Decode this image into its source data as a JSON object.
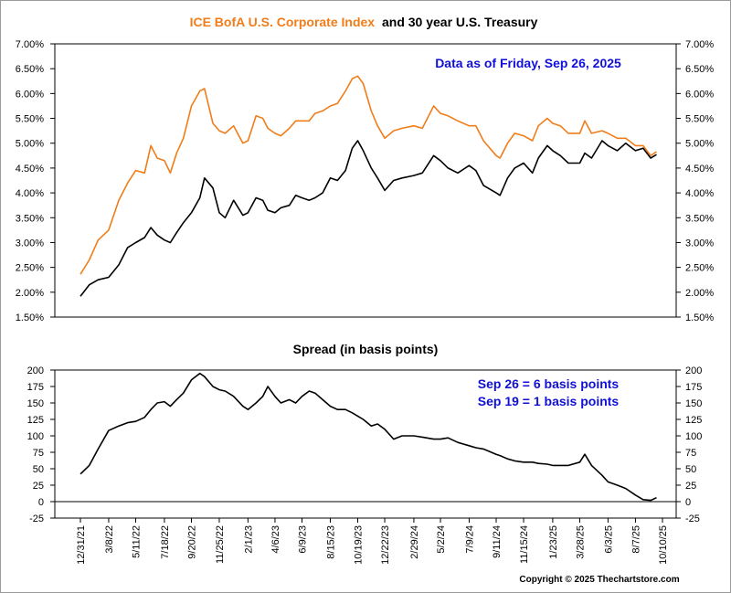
{
  "title": {
    "part1": "ICE BofA U.S. Corporate Index",
    "part2": "and 30 year U.S. Treasury"
  },
  "colors": {
    "corporate": "#f07d1a",
    "treasury": "#000000",
    "note": "#1010d8"
  },
  "annotations": {
    "top_note": "Data as of Friday, Sep 26, 2025",
    "spread_note_1": "Sep 26 = 6 basis points",
    "spread_note_2": "Sep 19 = 1 basis points"
  },
  "copyright": "Copyright © 2025 Thechartstore.com",
  "chart_data": [
    {
      "type": "line",
      "title": "ICE BofA U.S. Corporate Index and 30 year U.S. Treasury",
      "ylim": [
        1.5,
        7.0
      ],
      "y_ticks": [
        "1.50%",
        "2.00%",
        "2.50%",
        "3.00%",
        "3.50%",
        "4.00%",
        "4.50%",
        "5.00%",
        "5.50%",
        "6.00%",
        "6.50%",
        "7.00%"
      ],
      "grid": false,
      "series": [
        {
          "name": "ICE BofA U.S. Corporate Index",
          "color": "#f07d1a",
          "points": [
            [
              "12/31/21",
              2.36
            ],
            [
              "1/21/22",
              2.65
            ],
            [
              "2/11/22",
              3.05
            ],
            [
              "3/8/22",
              3.25
            ],
            [
              "4/1/22",
              3.85
            ],
            [
              "4/22/22",
              4.2
            ],
            [
              "5/11/22",
              4.45
            ],
            [
              "6/1/22",
              4.4
            ],
            [
              "6/16/22",
              4.95
            ],
            [
              "7/1/22",
              4.7
            ],
            [
              "7/18/22",
              4.65
            ],
            [
              "8/1/22",
              4.4
            ],
            [
              "8/16/22",
              4.8
            ],
            [
              "9/1/22",
              5.1
            ],
            [
              "9/20/22",
              5.75
            ],
            [
              "10/10/22",
              6.05
            ],
            [
              "10/21/22",
              6.1
            ],
            [
              "11/10/22",
              5.4
            ],
            [
              "11/25/22",
              5.25
            ],
            [
              "12/9/22",
              5.2
            ],
            [
              "12/29/22",
              5.35
            ],
            [
              "1/20/23",
              5.0
            ],
            [
              "2/1/23",
              5.05
            ],
            [
              "2/20/23",
              5.55
            ],
            [
              "3/8/23",
              5.5
            ],
            [
              "3/20/23",
              5.3
            ],
            [
              "4/6/23",
              5.2
            ],
            [
              "4/20/23",
              5.15
            ],
            [
              "5/10/23",
              5.3
            ],
            [
              "5/25/23",
              5.45
            ],
            [
              "6/9/23",
              5.45
            ],
            [
              "6/26/23",
              5.45
            ],
            [
              "7/10/23",
              5.6
            ],
            [
              "7/28/23",
              5.65
            ],
            [
              "8/15/23",
              5.75
            ],
            [
              "9/1/23",
              5.8
            ],
            [
              "9/20/23",
              6.05
            ],
            [
              "10/6/23",
              6.3
            ],
            [
              "10/19/23",
              6.35
            ],
            [
              "11/1/23",
              6.2
            ],
            [
              "11/20/23",
              5.65
            ],
            [
              "12/5/23",
              5.35
            ],
            [
              "12/22/23",
              5.1
            ],
            [
              "1/12/24",
              5.25
            ],
            [
              "2/1/24",
              5.3
            ],
            [
              "2/29/24",
              5.35
            ],
            [
              "3/20/24",
              5.3
            ],
            [
              "4/16/24",
              5.75
            ],
            [
              "5/2/24",
              5.6
            ],
            [
              "5/20/24",
              5.55
            ],
            [
              "6/12/24",
              5.45
            ],
            [
              "7/9/24",
              5.35
            ],
            [
              "7/25/24",
              5.35
            ],
            [
              "8/12/24",
              5.05
            ],
            [
              "9/11/24",
              4.75
            ],
            [
              "9/20/24",
              4.7
            ],
            [
              "10/8/24",
              5.0
            ],
            [
              "10/25/24",
              5.2
            ],
            [
              "11/15/24",
              5.15
            ],
            [
              "12/6/24",
              5.05
            ],
            [
              "12/20/24",
              5.35
            ],
            [
              "1/10/25",
              5.5
            ],
            [
              "1/23/25",
              5.4
            ],
            [
              "2/10/25",
              5.35
            ],
            [
              "3/1/25",
              5.2
            ],
            [
              "3/28/25",
              5.2
            ],
            [
              "4/9/25",
              5.45
            ],
            [
              "4/25/25",
              5.2
            ],
            [
              "5/20/25",
              5.25
            ],
            [
              "6/3/25",
              5.2
            ],
            [
              "6/25/25",
              5.1
            ],
            [
              "7/15/25",
              5.1
            ],
            [
              "8/7/25",
              4.95
            ],
            [
              "8/25/25",
              4.95
            ],
            [
              "9/12/25",
              4.75
            ],
            [
              "9/26/25",
              4.83
            ]
          ]
        },
        {
          "name": "30 year U.S. Treasury",
          "color": "#000000",
          "points": [
            [
              "12/31/21",
              1.92
            ],
            [
              "1/21/22",
              2.15
            ],
            [
              "2/11/22",
              2.25
            ],
            [
              "3/8/22",
              2.3
            ],
            [
              "4/1/22",
              2.55
            ],
            [
              "4/22/22",
              2.9
            ],
            [
              "5/11/22",
              3.0
            ],
            [
              "6/1/22",
              3.1
            ],
            [
              "6/16/22",
              3.3
            ],
            [
              "7/1/22",
              3.15
            ],
            [
              "7/18/22",
              3.05
            ],
            [
              "8/1/22",
              3.0
            ],
            [
              "8/16/22",
              3.2
            ],
            [
              "9/1/22",
              3.4
            ],
            [
              "9/20/22",
              3.6
            ],
            [
              "10/10/22",
              3.9
            ],
            [
              "10/21/22",
              4.3
            ],
            [
              "11/10/22",
              4.1
            ],
            [
              "11/25/22",
              3.6
            ],
            [
              "12/9/22",
              3.5
            ],
            [
              "12/29/22",
              3.85
            ],
            [
              "1/20/23",
              3.55
            ],
            [
              "2/1/23",
              3.6
            ],
            [
              "2/20/23",
              3.9
            ],
            [
              "3/8/23",
              3.85
            ],
            [
              "3/20/23",
              3.65
            ],
            [
              "4/6/23",
              3.6
            ],
            [
              "4/20/23",
              3.7
            ],
            [
              "5/10/23",
              3.75
            ],
            [
              "5/25/23",
              3.95
            ],
            [
              "6/9/23",
              3.9
            ],
            [
              "6/26/23",
              3.85
            ],
            [
              "7/10/23",
              3.9
            ],
            [
              "7/28/23",
              4.0
            ],
            [
              "8/15/23",
              4.3
            ],
            [
              "9/1/23",
              4.25
            ],
            [
              "9/20/23",
              4.45
            ],
            [
              "10/6/23",
              4.9
            ],
            [
              "10/19/23",
              5.05
            ],
            [
              "11/1/23",
              4.85
            ],
            [
              "11/20/23",
              4.5
            ],
            [
              "12/5/23",
              4.3
            ],
            [
              "12/22/23",
              4.05
            ],
            [
              "1/12/24",
              4.25
            ],
            [
              "2/1/24",
              4.3
            ],
            [
              "2/29/24",
              4.35
            ],
            [
              "3/20/24",
              4.4
            ],
            [
              "4/16/24",
              4.75
            ],
            [
              "5/2/24",
              4.65
            ],
            [
              "5/20/24",
              4.5
            ],
            [
              "6/12/24",
              4.4
            ],
            [
              "7/9/24",
              4.55
            ],
            [
              "7/25/24",
              4.45
            ],
            [
              "8/12/24",
              4.15
            ],
            [
              "9/11/24",
              4.0
            ],
            [
              "9/20/24",
              3.95
            ],
            [
              "10/8/24",
              4.3
            ],
            [
              "10/25/24",
              4.5
            ],
            [
              "11/15/24",
              4.6
            ],
            [
              "12/6/24",
              4.4
            ],
            [
              "12/20/24",
              4.7
            ],
            [
              "1/10/25",
              4.95
            ],
            [
              "1/23/25",
              4.85
            ],
            [
              "2/10/25",
              4.75
            ],
            [
              "3/1/25",
              4.6
            ],
            [
              "3/28/25",
              4.6
            ],
            [
              "4/9/25",
              4.8
            ],
            [
              "4/25/25",
              4.7
            ],
            [
              "5/20/25",
              5.05
            ],
            [
              "6/3/25",
              4.95
            ],
            [
              "6/25/25",
              4.85
            ],
            [
              "7/15/25",
              5.0
            ],
            [
              "8/7/25",
              4.85
            ],
            [
              "8/25/25",
              4.9
            ],
            [
              "9/12/25",
              4.7
            ],
            [
              "9/26/25",
              4.77
            ]
          ]
        }
      ]
    },
    {
      "type": "line",
      "title": "Spread (in basis points)",
      "ylim": [
        -25,
        200
      ],
      "y_ticks": [
        "-25",
        "0",
        "25",
        "50",
        "75",
        "100",
        "125",
        "150",
        "175",
        "200"
      ],
      "x_tick_labels": [
        "12/31/21",
        "3/8/22",
        "5/11/22",
        "7/18/22",
        "9/20/22",
        "11/25/22",
        "2/1/23",
        "4/6/23",
        "6/9/23",
        "8/15/23",
        "10/19/23",
        "12/22/23",
        "2/29/24",
        "5/2/24",
        "7/9/24",
        "9/11/24",
        "11/15/24",
        "1/23/25",
        "3/28/25",
        "6/3/25",
        "8/7/25",
        "10/10/25"
      ],
      "grid": false,
      "series": [
        {
          "name": "Spread",
          "color": "#000000",
          "points": [
            [
              "12/31/21",
              42
            ],
            [
              "1/21/22",
              55
            ],
            [
              "2/11/22",
              80
            ],
            [
              "3/8/22",
              108
            ],
            [
              "4/1/22",
              115
            ],
            [
              "4/22/22",
              120
            ],
            [
              "5/11/22",
              122
            ],
            [
              "6/1/22",
              128
            ],
            [
              "6/16/22",
              140
            ],
            [
              "7/1/22",
              150
            ],
            [
              "7/18/22",
              152
            ],
            [
              "8/1/22",
              145
            ],
            [
              "8/16/22",
              155
            ],
            [
              "9/1/22",
              165
            ],
            [
              "9/20/22",
              185
            ],
            [
              "10/10/22",
              195
            ],
            [
              "10/21/22",
              190
            ],
            [
              "11/10/22",
              175
            ],
            [
              "11/25/22",
              170
            ],
            [
              "12/9/22",
              168
            ],
            [
              "12/29/22",
              160
            ],
            [
              "1/20/23",
              145
            ],
            [
              "2/1/23",
              140
            ],
            [
              "2/20/23",
              150
            ],
            [
              "3/8/23",
              160
            ],
            [
              "3/20/23",
              175
            ],
            [
              "4/6/23",
              160
            ],
            [
              "4/20/23",
              150
            ],
            [
              "5/10/23",
              155
            ],
            [
              "5/25/23",
              150
            ],
            [
              "6/9/23",
              160
            ],
            [
              "6/26/23",
              168
            ],
            [
              "7/10/23",
              165
            ],
            [
              "7/28/23",
              155
            ],
            [
              "8/15/23",
              145
            ],
            [
              "9/1/23",
              140
            ],
            [
              "9/20/23",
              140
            ],
            [
              "10/6/23",
              135
            ],
            [
              "10/19/23",
              130
            ],
            [
              "11/1/23",
              125
            ],
            [
              "11/20/23",
              115
            ],
            [
              "12/5/23",
              118
            ],
            [
              "12/22/23",
              110
            ],
            [
              "1/12/24",
              95
            ],
            [
              "2/1/24",
              100
            ],
            [
              "2/29/24",
              100
            ],
            [
              "3/20/24",
              98
            ],
            [
              "4/16/24",
              95
            ],
            [
              "5/2/24",
              95
            ],
            [
              "5/20/24",
              97
            ],
            [
              "6/12/24",
              90
            ],
            [
              "7/9/24",
              85
            ],
            [
              "7/25/24",
              82
            ],
            [
              "8/12/24",
              80
            ],
            [
              "9/11/24",
              72
            ],
            [
              "9/20/24",
              70
            ],
            [
              "10/8/24",
              65
            ],
            [
              "10/25/24",
              62
            ],
            [
              "11/15/24",
              60
            ],
            [
              "12/6/24",
              60
            ],
            [
              "12/20/24",
              58
            ],
            [
              "1/10/25",
              57
            ],
            [
              "1/23/25",
              55
            ],
            [
              "2/10/25",
              55
            ],
            [
              "3/1/25",
              55
            ],
            [
              "3/28/25",
              60
            ],
            [
              "4/9/25",
              72
            ],
            [
              "4/25/25",
              55
            ],
            [
              "5/20/25",
              40
            ],
            [
              "6/3/25",
              30
            ],
            [
              "6/25/25",
              25
            ],
            [
              "7/15/25",
              20
            ],
            [
              "8/7/25",
              10
            ],
            [
              "8/25/25",
              3
            ],
            [
              "9/12/25",
              2
            ],
            [
              "9/26/25",
              6
            ]
          ]
        }
      ]
    }
  ]
}
